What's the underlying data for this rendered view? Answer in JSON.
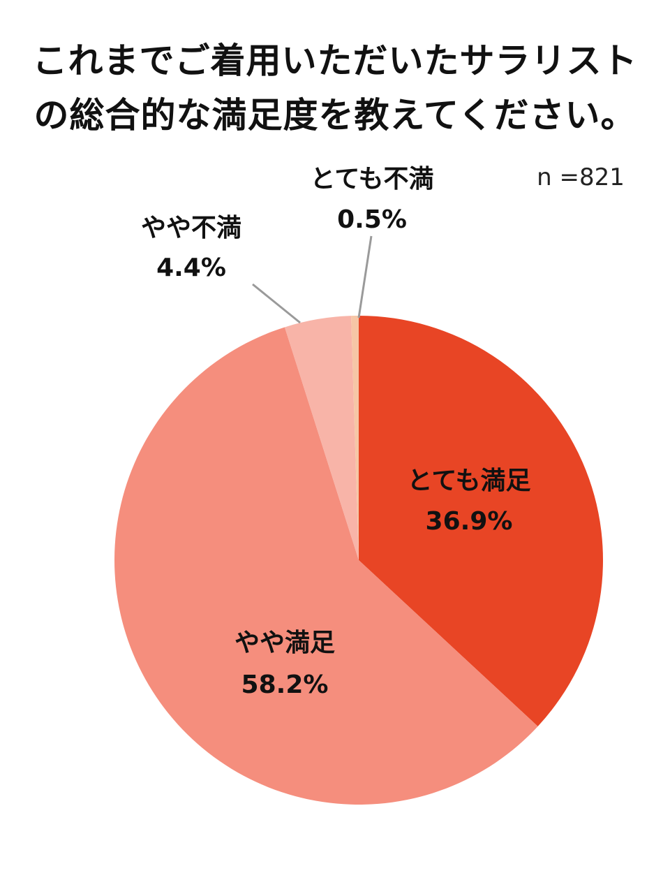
{
  "chart_data": {
    "type": "pie",
    "title_lines": [
      "これまでご着用いただいたサラリスト",
      "の総合的な満足度を教えてください。"
    ],
    "sample_size_label": "n =821",
    "slices": [
      {
        "label": "とても満足",
        "value": 36.9,
        "value_label": "36.9%",
        "color": "#e84525"
      },
      {
        "label": "やや満足",
        "value": 58.2,
        "value_label": "58.2%",
        "color": "#f58e7d"
      },
      {
        "label": "やや不満",
        "value": 4.4,
        "value_label": "4.4%",
        "color": "#f8b4a8"
      },
      {
        "label": "とても不満",
        "value": 0.5,
        "value_label": "0.5%",
        "color": "#f6c6a6"
      }
    ],
    "start": "12 o'clock, clockwise"
  }
}
